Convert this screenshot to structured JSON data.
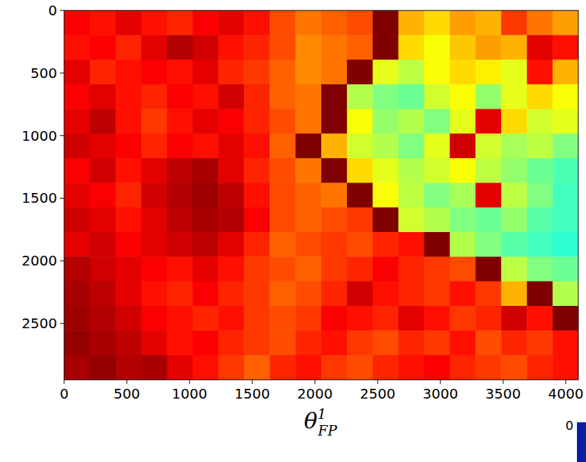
{
  "chart_data": {
    "type": "heatmap",
    "title": "θ",
    "title_sub": "FP",
    "title_sup": "1",
    "annotations": [
      "0"
    ],
    "xlim": [
      0,
      4100
    ],
    "ylim": [
      0,
      2950
    ],
    "xticks": [
      0,
      500,
      1000,
      1500,
      2000,
      2500,
      3000,
      3500,
      4000
    ],
    "yticks": [
      0,
      500,
      1000,
      1500,
      2000,
      2500
    ],
    "grid": false,
    "color_range": [
      0,
      1
    ],
    "x_bins": [
      0,
      205,
      410,
      615,
      820,
      1025,
      1230,
      1435,
      1640,
      1845,
      2050,
      2255,
      2460,
      2665,
      2870,
      3075,
      3280,
      3485,
      3690,
      3895,
      4100
    ],
    "y_bins": [
      0,
      197,
      393,
      590,
      787,
      983,
      1180,
      1377,
      1573,
      1770,
      1967,
      2163,
      2360,
      2557,
      2753,
      2950
    ],
    "z": [
      [
        0.88,
        0.86,
        0.9,
        0.86,
        0.84,
        0.88,
        0.9,
        0.86,
        0.8,
        0.76,
        0.78,
        0.8,
        1.0,
        0.7,
        0.66,
        0.72,
        0.7,
        0.82,
        0.76,
        0.72
      ],
      [
        0.86,
        0.88,
        0.84,
        0.9,
        0.95,
        0.92,
        0.86,
        0.84,
        0.8,
        0.74,
        0.76,
        0.78,
        1.0,
        0.66,
        0.62,
        0.68,
        0.72,
        0.7,
        0.9,
        0.86
      ],
      [
        0.9,
        0.84,
        0.86,
        0.88,
        0.86,
        0.9,
        0.84,
        0.82,
        0.78,
        0.74,
        0.76,
        1.0,
        0.6,
        0.56,
        0.62,
        0.66,
        0.64,
        0.6,
        0.86,
        0.7
      ],
      [
        0.88,
        0.9,
        0.86,
        0.84,
        0.88,
        0.86,
        0.92,
        0.84,
        0.78,
        0.76,
        1.0,
        0.55,
        0.5,
        0.48,
        0.58,
        0.62,
        0.52,
        0.6,
        0.66,
        0.62
      ],
      [
        0.9,
        0.94,
        0.86,
        0.82,
        0.86,
        0.9,
        0.88,
        0.84,
        0.8,
        0.76,
        1.0,
        0.62,
        0.52,
        0.55,
        0.5,
        0.6,
        0.9,
        0.66,
        0.58,
        0.6
      ],
      [
        0.92,
        0.9,
        0.88,
        0.84,
        0.88,
        0.86,
        0.9,
        0.86,
        0.78,
        1.0,
        0.7,
        0.58,
        0.55,
        0.5,
        0.6,
        0.92,
        0.58,
        0.54,
        0.56,
        0.5
      ],
      [
        0.88,
        0.92,
        0.86,
        0.9,
        0.94,
        0.96,
        0.9,
        0.84,
        0.8,
        0.76,
        1.0,
        0.66,
        0.6,
        0.55,
        0.58,
        0.62,
        0.56,
        0.52,
        0.48,
        0.45
      ],
      [
        0.9,
        0.88,
        0.84,
        0.92,
        0.95,
        0.97,
        0.94,
        0.86,
        0.8,
        0.78,
        0.76,
        1.0,
        0.62,
        0.56,
        0.5,
        0.54,
        0.9,
        0.56,
        0.5,
        0.44
      ],
      [
        0.92,
        0.9,
        0.86,
        0.9,
        0.94,
        0.96,
        0.95,
        0.88,
        0.8,
        0.78,
        0.8,
        0.82,
        1.0,
        0.58,
        0.55,
        0.5,
        0.48,
        0.52,
        0.46,
        0.44
      ],
      [
        0.9,
        0.92,
        0.88,
        0.9,
        0.92,
        0.94,
        0.9,
        0.84,
        0.78,
        0.8,
        0.82,
        0.8,
        0.84,
        0.86,
        1.0,
        0.55,
        0.5,
        0.46,
        0.44,
        0.42
      ],
      [
        0.95,
        0.92,
        0.9,
        0.88,
        0.86,
        0.9,
        0.86,
        0.82,
        0.8,
        0.78,
        0.82,
        0.84,
        0.88,
        0.84,
        0.82,
        0.8,
        1.0,
        0.56,
        0.5,
        0.48
      ],
      [
        0.96,
        0.94,
        0.9,
        0.86,
        0.84,
        0.88,
        0.84,
        0.82,
        0.78,
        0.8,
        0.84,
        0.92,
        0.86,
        0.84,
        0.82,
        0.86,
        0.82,
        0.7,
        1.0,
        0.55
      ],
      [
        0.97,
        0.95,
        0.92,
        0.88,
        0.86,
        0.84,
        0.86,
        0.82,
        0.8,
        0.82,
        0.88,
        0.86,
        0.84,
        0.9,
        0.86,
        0.82,
        0.84,
        0.92,
        0.86,
        1.0
      ],
      [
        0.98,
        0.96,
        0.94,
        0.9,
        0.86,
        0.88,
        0.84,
        0.82,
        0.8,
        0.84,
        0.86,
        0.82,
        0.8,
        0.84,
        0.82,
        0.86,
        0.8,
        0.84,
        0.82,
        0.86
      ],
      [
        0.96,
        0.98,
        0.95,
        0.96,
        0.9,
        0.86,
        0.82,
        0.78,
        0.84,
        0.86,
        0.82,
        0.8,
        0.84,
        0.86,
        0.88,
        0.84,
        0.82,
        0.8,
        0.84,
        0.86
      ]
    ]
  }
}
